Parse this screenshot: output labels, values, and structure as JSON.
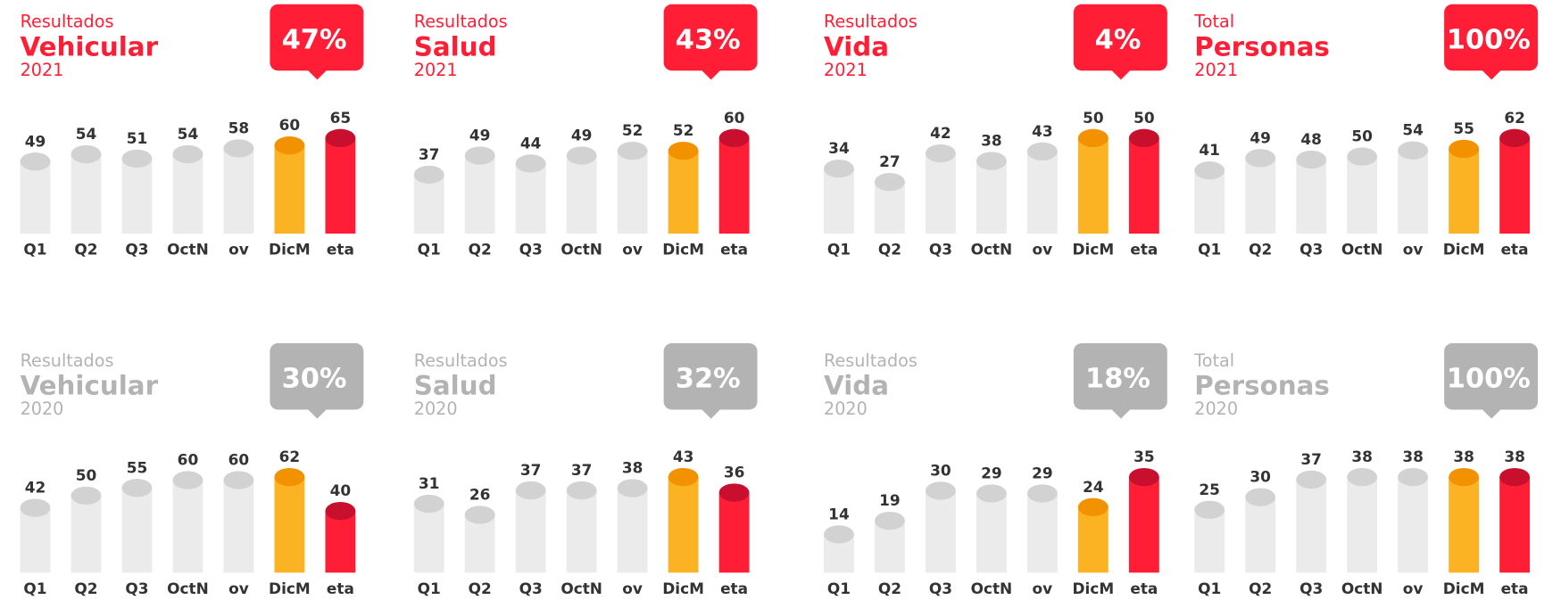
{
  "categories": [
    "Q1",
    "Q2",
    "Q3",
    "OctN",
    "ov",
    "DicM",
    "eta"
  ],
  "bar_colors": [
    "#ebebeb",
    "#ebebeb",
    "#ebebeb",
    "#ebebeb",
    "#ebebeb",
    "#fbb323",
    "#ff1e35"
  ],
  "bar_top_colors": [
    "#d2d2d2",
    "#d2d2d2",
    "#d2d2d2",
    "#d2d2d2",
    "#d2d2d2",
    "#f39200",
    "#c8102e"
  ],
  "panels": [
    {
      "label": "Resultados",
      "name": "Vehicular",
      "year": "2021",
      "badge": "47%",
      "color": "#ff1e35",
      "values": [
        49,
        54,
        51,
        54,
        58,
        60,
        65
      ]
    },
    {
      "label": "Resultados",
      "name": "Salud",
      "year": "2021",
      "badge": "43%",
      "color": "#ff1e35",
      "values": [
        37,
        49,
        44,
        49,
        52,
        52,
        60
      ]
    },
    {
      "label": "Resultados",
      "name": "Vida",
      "year": "2021",
      "badge": "4%",
      "color": "#ff1e35",
      "values": [
        34,
        27,
        42,
        38,
        43,
        50,
        50
      ]
    },
    {
      "label": "Total",
      "name": "Personas",
      "year": "2021",
      "badge": "100%",
      "color": "#ff1e35",
      "values": [
        41,
        49,
        48,
        50,
        54,
        55,
        62
      ]
    },
    {
      "label": "Resultados",
      "name": "Vehicular",
      "year": "2020",
      "badge": "30%",
      "color": "#b3b3b3",
      "values": [
        42,
        50,
        55,
        60,
        60,
        62,
        40
      ]
    },
    {
      "label": "Resultados",
      "name": "Salud",
      "year": "2020",
      "badge": "32%",
      "color": "#b3b3b3",
      "values": [
        31,
        26,
        37,
        37,
        38,
        43,
        36
      ]
    },
    {
      "label": "Resultados",
      "name": "Vida",
      "year": "2020",
      "badge": "18%",
      "color": "#b3b3b3",
      "values": [
        14,
        19,
        30,
        29,
        29,
        24,
        35
      ]
    },
    {
      "label": "Total",
      "name": "Personas",
      "year": "2020",
      "badge": "100%",
      "color": "#b3b3b3",
      "values": [
        25,
        30,
        37,
        38,
        38,
        38,
        38
      ]
    }
  ]
}
